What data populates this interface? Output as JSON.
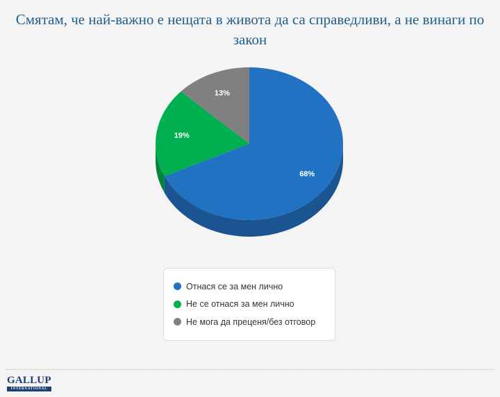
{
  "chart_data": {
    "type": "pie",
    "title": "Смятам, че най-важно е нещата в живота да са справедливи, а не винаги по закон",
    "slices": [
      {
        "label": "Отнася се за мен лично",
        "value": 68,
        "value_label": "68%",
        "color": "#2172c2",
        "side_color": "#1a5592"
      },
      {
        "label": "Не се отнася за мен лично",
        "value": 19,
        "value_label": "19%",
        "color": "#00b050",
        "side_color": "#00843c"
      },
      {
        "label": "Не мога да преценя/без отговор",
        "value": 13,
        "value_label": "13%",
        "color": "#808080",
        "side_color": "#606060"
      }
    ],
    "legend_position": "bottom"
  },
  "logo": {
    "main": "GALLUP",
    "sub": "INTERNATIONAL"
  }
}
